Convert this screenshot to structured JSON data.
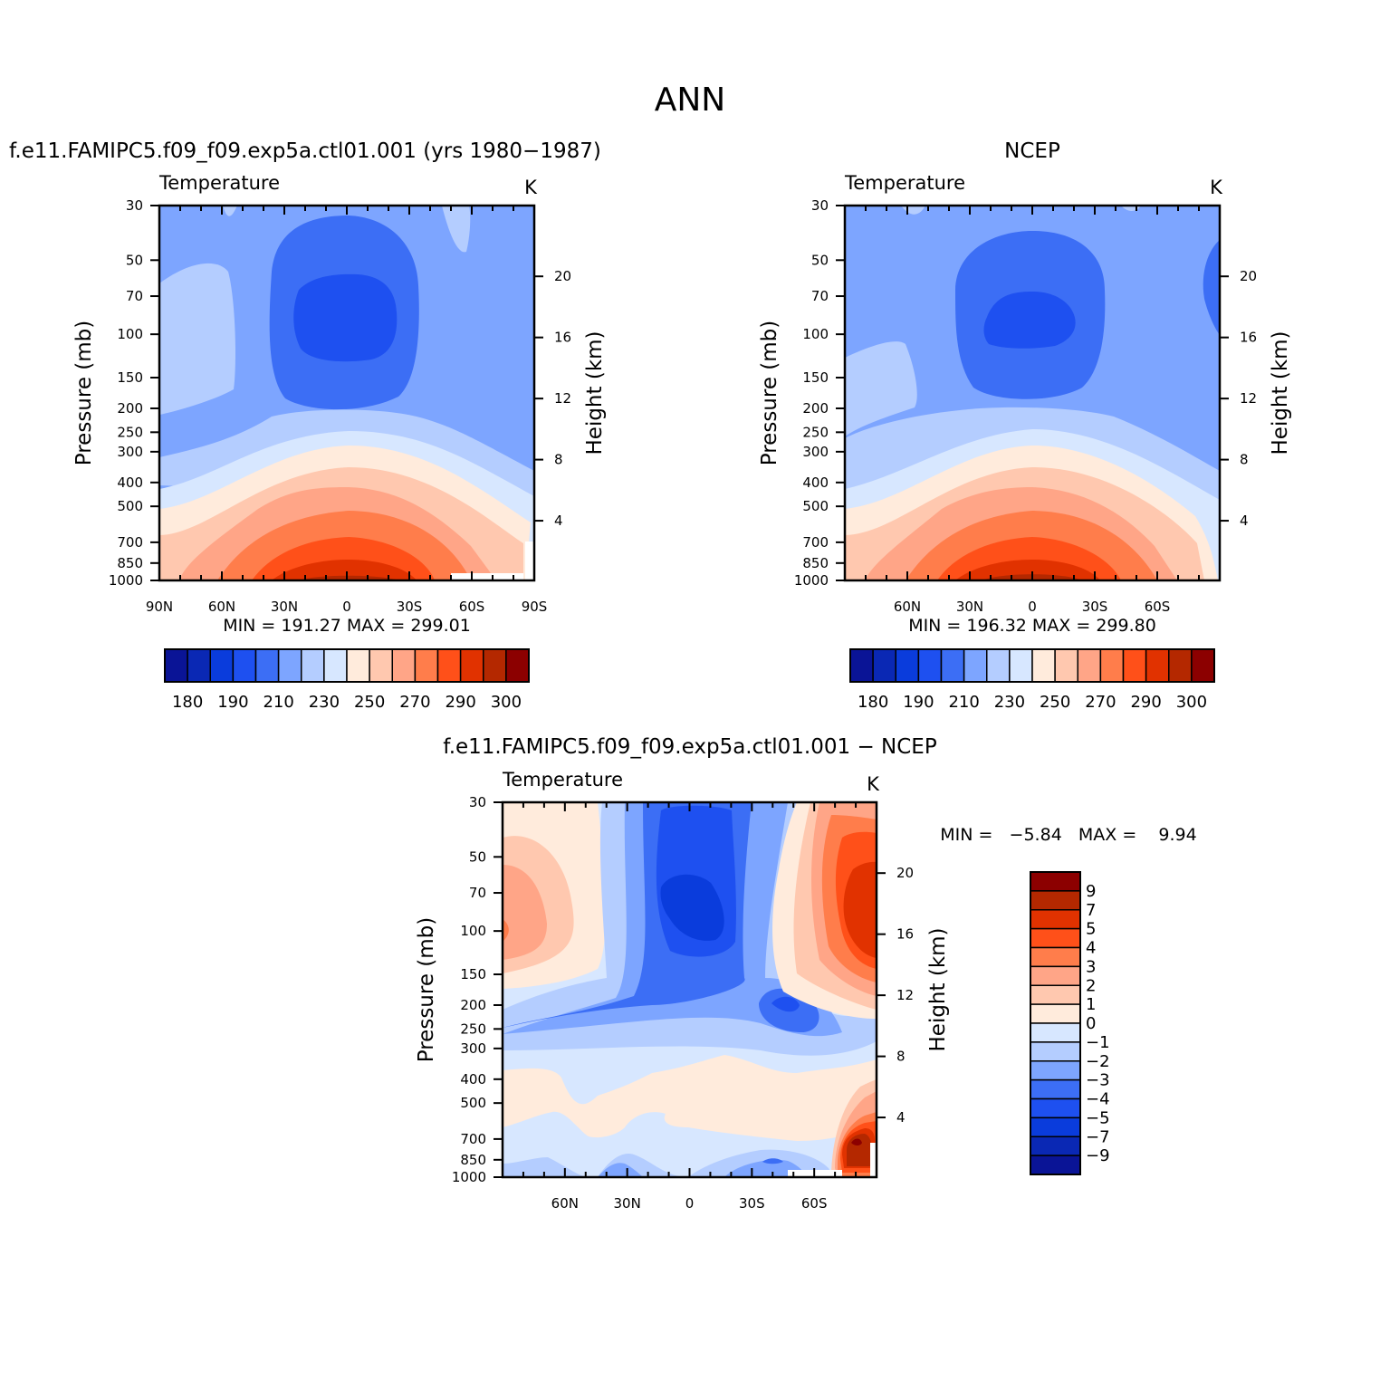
{
  "figure": {
    "title": "ANN",
    "panels": [
      {
        "id": "model",
        "title": "f.e11.FAMIPC5.f09_f09.exp5a.ctl01.001 (yrs 1980−1987)",
        "left_label": "Temperature",
        "right_label": "K",
        "y_label": "Pressure (mb)",
        "y2_label": "Height (km)",
        "x_ticks": [
          "90N",
          "60N",
          "30N",
          "0",
          "30S",
          "60S",
          "90S"
        ],
        "min_max": "MIN = 191.27   MAX = 299.01",
        "colorbar_labels": [
          "180",
          "190",
          "210",
          "230",
          "250",
          "270",
          "290",
          "300"
        ]
      },
      {
        "id": "obs",
        "title": "NCEP",
        "left_label": "Temperature",
        "right_label": "K",
        "y_label": "Pressure (mb)",
        "y2_label": "Height (km)",
        "x_ticks": [
          "60N",
          "30N",
          "0",
          "30S",
          "60S"
        ],
        "min_max": "MIN = 196.32   MAX = 299.80",
        "colorbar_labels": [
          "180",
          "190",
          "210",
          "230",
          "250",
          "270",
          "290",
          "300"
        ]
      },
      {
        "id": "diff",
        "title": "f.e11.FAMIPC5.f09_f09.exp5a.ctl01.001 − NCEP",
        "left_label": "Temperature",
        "right_label": "K",
        "y_label": "Pressure (mb)",
        "y2_label": "Height (km)",
        "x_ticks": [
          "60N",
          "30N",
          "0",
          "30S",
          "60S"
        ],
        "min_max": "MIN =   −5.84   MAX =    9.94",
        "colorbar_labels": [
          "9",
          "7",
          "5",
          "4",
          "3",
          "2",
          "1",
          "0",
          "−1",
          "−2",
          "−3",
          "−4",
          "−5",
          "−7",
          "−9"
        ]
      }
    ],
    "pressure_ticks": [
      "30",
      "50",
      "70",
      "100",
      "150",
      "200",
      "250",
      "300",
      "400",
      "500",
      "700",
      "850",
      "1000"
    ],
    "height_ticks": [
      "20",
      "16",
      "12",
      "8",
      "4"
    ]
  },
  "chart_data": [
    {
      "type": "heatmap",
      "title": "f.e11.FAMIPC5.f09_f09.exp5a.ctl01.001 (yrs 1980−1987)",
      "variable": "Temperature",
      "units": "K",
      "xlabel": "",
      "ylabel": "Pressure (mb)",
      "y2label": "Height (km)",
      "x_range": [
        90,
        -90
      ],
      "y_range": [
        1000,
        30
      ],
      "y_scale": "log",
      "levels": [
        180,
        185,
        190,
        200,
        210,
        220,
        230,
        240,
        250,
        260,
        270,
        280,
        290,
        295,
        300
      ],
      "colors": [
        "#0a1496",
        "#0a28b4",
        "#0a3cdc",
        "#1e50f0",
        "#3c6ef5",
        "#7da5ff",
        "#b4cdff",
        "#d7e7ff",
        "#ffebdc",
        "#ffc8af",
        "#ffa587",
        "#ff7d4b",
        "#ff5019",
        "#e13200",
        "#b42800",
        "#8c0000"
      ],
      "min": 191.27,
      "max": 299.01
    },
    {
      "type": "heatmap",
      "title": "NCEP",
      "variable": "Temperature",
      "units": "K",
      "xlabel": "",
      "ylabel": "Pressure (mb)",
      "y2label": "Height (km)",
      "x_range": [
        90,
        -90
      ],
      "y_range": [
        1000,
        30
      ],
      "y_scale": "log",
      "levels": [
        180,
        185,
        190,
        200,
        210,
        220,
        230,
        240,
        250,
        260,
        270,
        280,
        290,
        295,
        300
      ],
      "colors": [
        "#0a1496",
        "#0a28b4",
        "#0a3cdc",
        "#1e50f0",
        "#3c6ef5",
        "#7da5ff",
        "#b4cdff",
        "#d7e7ff",
        "#ffebdc",
        "#ffc8af",
        "#ffa587",
        "#ff7d4b",
        "#ff5019",
        "#e13200",
        "#b42800",
        "#8c0000"
      ],
      "min": 196.32,
      "max": 299.8
    },
    {
      "type": "heatmap",
      "title": "f.e11.FAMIPC5.f09_f09.exp5a.ctl01.001 − NCEP",
      "variable": "Temperature",
      "units": "K",
      "xlabel": "",
      "ylabel": "Pressure (mb)",
      "y2label": "Height (km)",
      "x_range": [
        90,
        -90
      ],
      "y_range": [
        1000,
        30
      ],
      "y_scale": "log",
      "levels": [
        -9,
        -7,
        -5,
        -4,
        -3,
        -2,
        -1,
        0,
        1,
        2,
        3,
        4,
        5,
        7,
        9
      ],
      "colors": [
        "#0a1496",
        "#0a28b4",
        "#0a3cdc",
        "#1e50f0",
        "#3c6ef5",
        "#7da5ff",
        "#b4cdff",
        "#d7e7ff",
        "#ffebdc",
        "#ffc8af",
        "#ffa587",
        "#ff7d4b",
        "#ff5019",
        "#e13200",
        "#b42800",
        "#8c0000"
      ],
      "min": -5.84,
      "max": 9.94
    }
  ]
}
